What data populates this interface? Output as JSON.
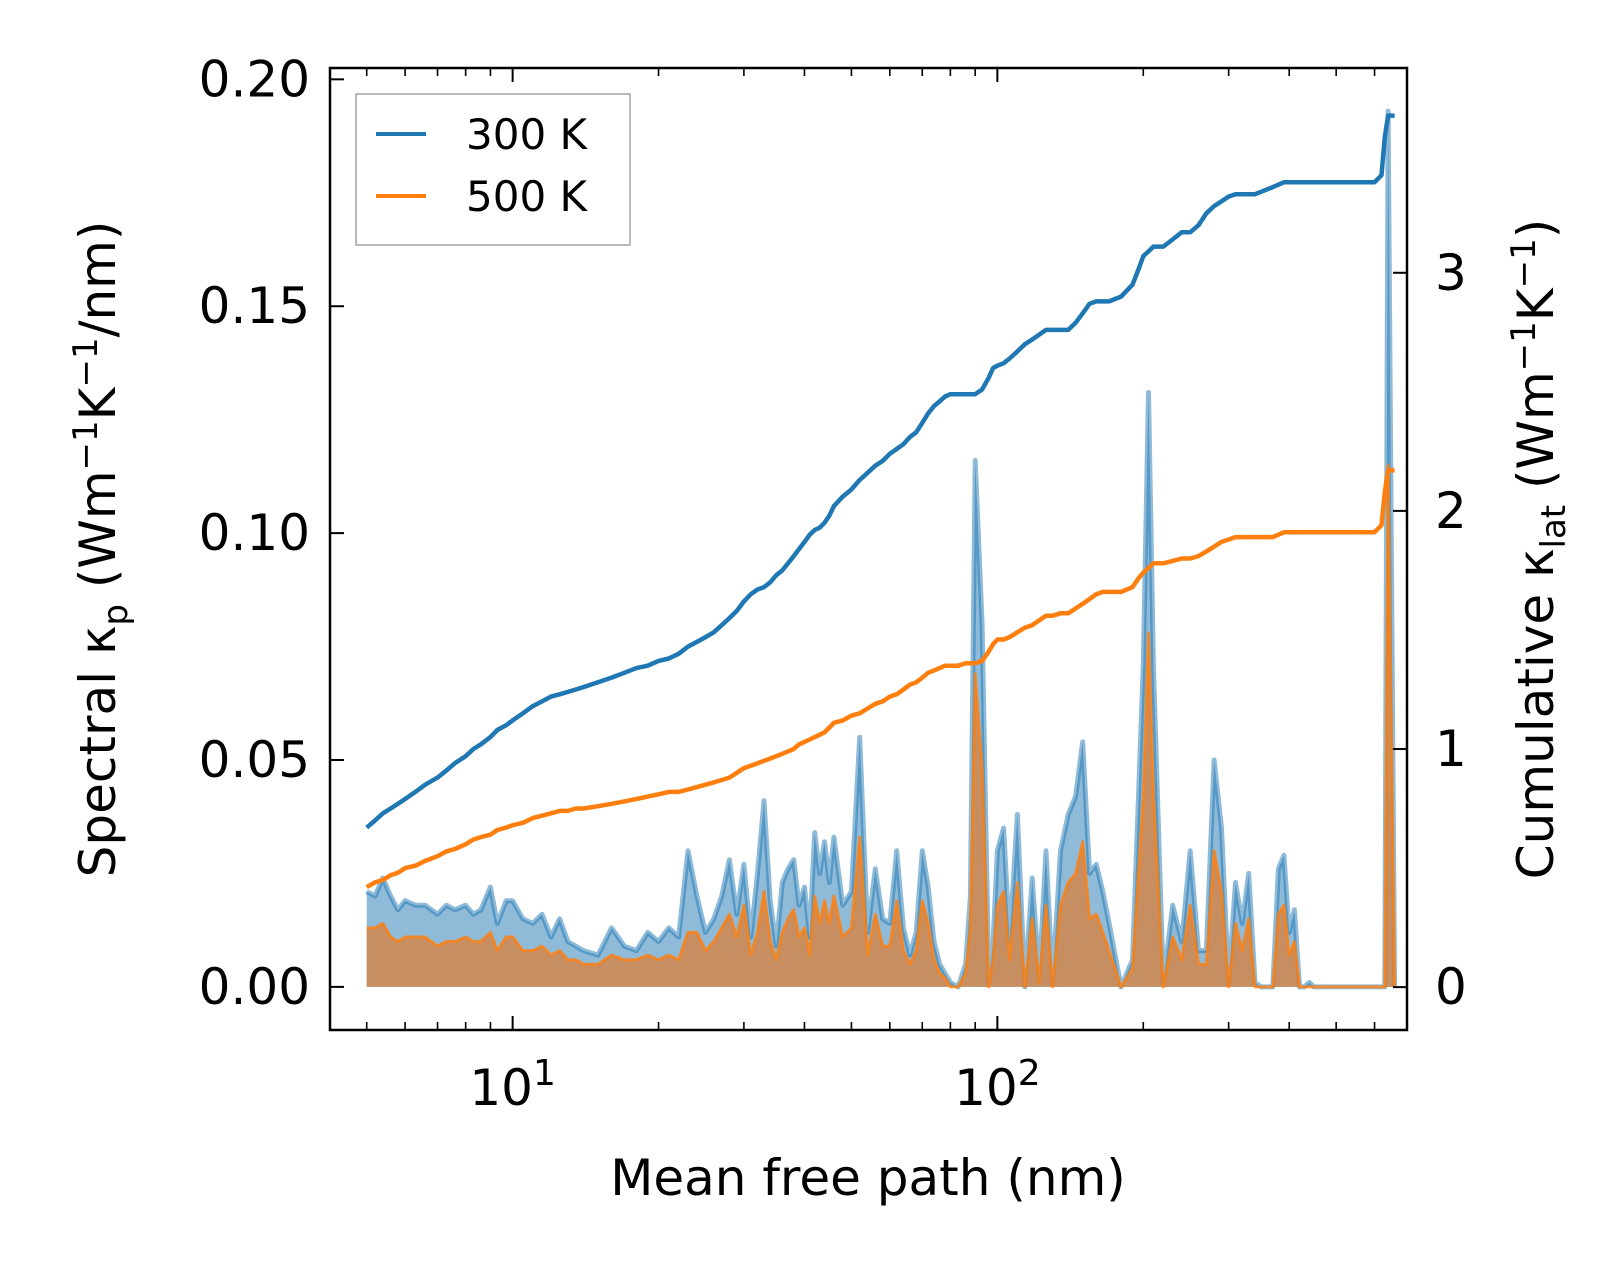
{
  "chart_data": {
    "type": "line",
    "title": "",
    "xlabel": "Mean free path (nm)",
    "ylabel": "Spectral κ",
    "ylabel_sub": "p",
    "ylabel_units": " (Wm",
    "ylabel_units_tail": "/nm)",
    "y2label": "Cumulative κ",
    "y2label_sub": "lat",
    "y2label_units": " (Wm",
    "y2label_units_tail": ")",
    "exp_neg1": "−1",
    "unit_K": "K",
    "xscale": "log",
    "xlim": [
      4.2,
      700
    ],
    "ylim": [
      -0.0095,
      0.2025
    ],
    "y2lim": [
      -0.18,
      3.86
    ],
    "x_ticks": [
      {
        "base": "10",
        "exp": "1",
        "value": 10
      },
      {
        "base": "10",
        "exp": "2",
        "value": 100
      }
    ],
    "y_ticks": [
      "0.00",
      "0.05",
      "0.10",
      "0.15",
      "0.20"
    ],
    "y_tick_values": [
      0,
      0.05,
      0.1,
      0.15,
      0.2
    ],
    "y2_ticks": [
      "0",
      "1",
      "2",
      "3"
    ],
    "y2_tick_values": [
      0,
      1,
      2,
      3
    ],
    "legend": {
      "position": "upper left",
      "entries": [
        "300 K",
        "500 K"
      ]
    },
    "colors": {
      "300K": "#1f77b4",
      "500K": "#ff7f0e",
      "fill300": "#1f77b4",
      "fill500": "#d97f3a"
    },
    "x": [
      5.0,
      5.2,
      5.4,
      5.6,
      5.8,
      6.0,
      6.3,
      6.6,
      7.0,
      7.3,
      7.6,
      8.0,
      8.3,
      8.6,
      9.0,
      9.3,
      9.7,
      10.0,
      10.5,
      11.0,
      11.5,
      12.0,
      12.5,
      13.0,
      13.5,
      14.0,
      15.0,
      16.0,
      17.0,
      18.0,
      19.0,
      20.0,
      21.0,
      22.0,
      23.0,
      24.0,
      25.0,
      26.0,
      27.0,
      28.0,
      29.0,
      30.0,
      31.0,
      32.0,
      33.0,
      34.0,
      35.0,
      36.0,
      37.0,
      38.0,
      39.0,
      40.0,
      41.0,
      42.0,
      43.0,
      44.0,
      45.0,
      46.0,
      48.0,
      50.0,
      52.0,
      54.0,
      56.0,
      58.0,
      60.0,
      62.0,
      64.0,
      66.0,
      68.0,
      70.0,
      72.0,
      74.0,
      76.0,
      78.0,
      80.0,
      83.0,
      86.0,
      88.0,
      90.0,
      93.0,
      96.0,
      98.0,
      100.0,
      103.0,
      106.0,
      110.0,
      114.0,
      118.0,
      122.0,
      126.0,
      130.0,
      135.0,
      140.0,
      145.0,
      150.0,
      155.0,
      160.0,
      165.0,
      170.0,
      180.0,
      190.0,
      196.0,
      200.0,
      205.0,
      210.0,
      220.0,
      230.0,
      240.0,
      250.0,
      260.0,
      270.0,
      280.0,
      290.0,
      300.0,
      310.0,
      320.0,
      330.0,
      340.0,
      350.0,
      370.0,
      380.0,
      390.0,
      400.0,
      410.0,
      420.0,
      430.0,
      440.0,
      450.0,
      470.0,
      500.0,
      550.0,
      600.0,
      620.0,
      630.0,
      640.0,
      660.0
    ],
    "series": [
      {
        "name": "300 K",
        "axis": "right",
        "kind": "cumulative",
        "values": [
          0.67,
          0.7,
          0.73,
          0.75,
          0.77,
          0.79,
          0.82,
          0.85,
          0.88,
          0.91,
          0.94,
          0.97,
          1.0,
          1.02,
          1.05,
          1.08,
          1.1,
          1.12,
          1.15,
          1.18,
          1.2,
          1.22,
          1.23,
          1.24,
          1.25,
          1.26,
          1.28,
          1.3,
          1.32,
          1.34,
          1.35,
          1.37,
          1.38,
          1.4,
          1.43,
          1.45,
          1.47,
          1.49,
          1.52,
          1.55,
          1.58,
          1.62,
          1.65,
          1.67,
          1.68,
          1.7,
          1.73,
          1.75,
          1.78,
          1.81,
          1.84,
          1.87,
          1.9,
          1.92,
          1.93,
          1.95,
          1.98,
          2.02,
          2.06,
          2.09,
          2.13,
          2.16,
          2.19,
          2.21,
          2.24,
          2.26,
          2.28,
          2.31,
          2.33,
          2.37,
          2.41,
          2.44,
          2.46,
          2.48,
          2.49,
          2.49,
          2.49,
          2.49,
          2.49,
          2.51,
          2.56,
          2.6,
          2.61,
          2.62,
          2.64,
          2.67,
          2.7,
          2.72,
          2.74,
          2.76,
          2.76,
          2.76,
          2.76,
          2.79,
          2.83,
          2.87,
          2.88,
          2.88,
          2.88,
          2.9,
          2.95,
          3.02,
          3.07,
          3.09,
          3.11,
          3.11,
          3.14,
          3.17,
          3.17,
          3.2,
          3.25,
          3.28,
          3.3,
          3.32,
          3.33,
          3.33,
          3.33,
          3.33,
          3.34,
          3.36,
          3.37,
          3.38,
          3.38,
          3.38,
          3.38,
          3.38,
          3.38,
          3.38,
          3.38,
          3.38,
          3.38,
          3.38,
          3.41,
          3.57,
          3.66,
          3.66
        ]
      },
      {
        "name": "500 K",
        "axis": "right",
        "kind": "cumulative",
        "values": [
          0.42,
          0.44,
          0.45,
          0.47,
          0.48,
          0.5,
          0.51,
          0.53,
          0.55,
          0.57,
          0.58,
          0.6,
          0.62,
          0.63,
          0.64,
          0.66,
          0.67,
          0.68,
          0.69,
          0.71,
          0.72,
          0.73,
          0.74,
          0.74,
          0.75,
          0.75,
          0.76,
          0.77,
          0.78,
          0.79,
          0.8,
          0.81,
          0.82,
          0.82,
          0.83,
          0.84,
          0.85,
          0.86,
          0.87,
          0.88,
          0.9,
          0.92,
          0.93,
          0.94,
          0.95,
          0.96,
          0.97,
          0.98,
          0.99,
          1.0,
          1.02,
          1.03,
          1.04,
          1.05,
          1.06,
          1.07,
          1.09,
          1.11,
          1.12,
          1.14,
          1.15,
          1.17,
          1.19,
          1.2,
          1.22,
          1.23,
          1.25,
          1.27,
          1.28,
          1.3,
          1.32,
          1.33,
          1.34,
          1.35,
          1.35,
          1.35,
          1.36,
          1.36,
          1.36,
          1.37,
          1.41,
          1.44,
          1.46,
          1.46,
          1.47,
          1.49,
          1.51,
          1.52,
          1.54,
          1.56,
          1.56,
          1.57,
          1.57,
          1.59,
          1.61,
          1.63,
          1.65,
          1.66,
          1.66,
          1.66,
          1.68,
          1.72,
          1.74,
          1.76,
          1.78,
          1.78,
          1.79,
          1.8,
          1.8,
          1.81,
          1.83,
          1.85,
          1.87,
          1.88,
          1.89,
          1.89,
          1.89,
          1.89,
          1.89,
          1.89,
          1.9,
          1.91,
          1.91,
          1.91,
          1.91,
          1.91,
          1.91,
          1.91,
          1.91,
          1.91,
          1.91,
          1.91,
          1.94,
          2.08,
          2.17,
          2.17
        ]
      },
      {
        "name": "300 K spectral",
        "axis": "left",
        "kind": "spectral",
        "values": [
          0.021,
          0.02,
          0.024,
          0.02,
          0.017,
          0.019,
          0.018,
          0.018,
          0.016,
          0.018,
          0.017,
          0.018,
          0.016,
          0.017,
          0.022,
          0.014,
          0.019,
          0.019,
          0.015,
          0.014,
          0.016,
          0.011,
          0.015,
          0.01,
          0.009,
          0.008,
          0.007,
          0.013,
          0.009,
          0.008,
          0.012,
          0.01,
          0.013,
          0.011,
          0.03,
          0.02,
          0.012,
          0.015,
          0.02,
          0.028,
          0.016,
          0.027,
          0.011,
          0.025,
          0.041,
          0.019,
          0.009,
          0.023,
          0.026,
          0.028,
          0.018,
          0.022,
          0.011,
          0.034,
          0.025,
          0.032,
          0.023,
          0.033,
          0.018,
          0.021,
          0.055,
          0.012,
          0.026,
          0.015,
          0.014,
          0.03,
          0.013,
          0.007,
          0.012,
          0.03,
          0.022,
          0.01,
          0.005,
          0.003,
          0.001,
          0.0,
          0.005,
          0.02,
          0.116,
          0.08,
          0.001,
          0.01,
          0.03,
          0.035,
          0.01,
          0.038,
          0.0,
          0.024,
          0.002,
          0.03,
          0.001,
          0.03,
          0.038,
          0.042,
          0.054,
          0.025,
          0.027,
          0.021,
          0.014,
          0.0,
          0.006,
          0.045,
          0.071,
          0.131,
          0.07,
          0.001,
          0.018,
          0.01,
          0.03,
          0.008,
          0.008,
          0.05,
          0.035,
          0.001,
          0.023,
          0.014,
          0.025,
          0.001,
          0.0,
          0.0,
          0.026,
          0.029,
          0.012,
          0.017,
          0.0,
          0.0,
          0.001,
          0.0,
          0.0,
          0.0,
          0.0,
          0.0,
          0.0,
          0.0,
          0.193,
          0.0
        ]
      },
      {
        "name": "500 K spectral",
        "axis": "left",
        "kind": "spectral",
        "values": [
          0.013,
          0.013,
          0.014,
          0.011,
          0.01,
          0.011,
          0.011,
          0.011,
          0.009,
          0.01,
          0.01,
          0.011,
          0.01,
          0.01,
          0.012,
          0.008,
          0.011,
          0.011,
          0.008,
          0.008,
          0.009,
          0.007,
          0.008,
          0.006,
          0.006,
          0.005,
          0.005,
          0.007,
          0.006,
          0.006,
          0.007,
          0.006,
          0.007,
          0.006,
          0.012,
          0.012,
          0.008,
          0.01,
          0.013,
          0.016,
          0.011,
          0.018,
          0.007,
          0.012,
          0.021,
          0.01,
          0.006,
          0.012,
          0.015,
          0.017,
          0.011,
          0.013,
          0.007,
          0.02,
          0.014,
          0.019,
          0.014,
          0.02,
          0.011,
          0.013,
          0.033,
          0.007,
          0.016,
          0.009,
          0.009,
          0.019,
          0.008,
          0.005,
          0.008,
          0.019,
          0.014,
          0.006,
          0.003,
          0.002,
          0.0,
          0.0,
          0.003,
          0.013,
          0.069,
          0.048,
          0.0,
          0.006,
          0.018,
          0.021,
          0.006,
          0.023,
          0.0,
          0.015,
          0.001,
          0.018,
          0.0,
          0.018,
          0.023,
          0.025,
          0.032,
          0.015,
          0.016,
          0.012,
          0.008,
          0.0,
          0.004,
          0.027,
          0.042,
          0.078,
          0.042,
          0.0,
          0.011,
          0.006,
          0.018,
          0.005,
          0.005,
          0.03,
          0.021,
          0.0,
          0.014,
          0.008,
          0.015,
          0.0,
          0.0,
          0.0,
          0.016,
          0.018,
          0.007,
          0.01,
          0.0,
          0.0,
          0.0,
          0.0,
          0.0,
          0.0,
          0.0,
          0.0,
          0.0,
          0.0,
          0.115,
          0.0
        ]
      }
    ]
  }
}
